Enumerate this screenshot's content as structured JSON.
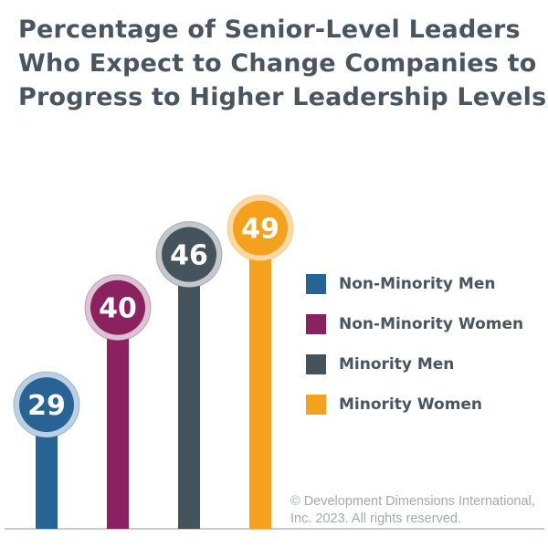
{
  "title_lines": [
    "Percentage of Senior-Level Leaders",
    "Who Expect to Change Companies to",
    "Progress to Higher Leadership Levels"
  ],
  "chart_data": {
    "type": "bar",
    "title": "Percentage of Senior-Level Leaders Who Expect to Change Companies to Progress to Higher Leadership Levels",
    "categories": [
      "Non-Minority Men",
      "Non-Minority Women",
      "Minority Men",
      "Minority Women"
    ],
    "values": [
      29,
      40,
      46,
      49
    ],
    "colors": [
      "#276394",
      "#8c2160",
      "#45535d",
      "#f4a11d"
    ],
    "ring_colors": [
      "#bcd0e4",
      "#dcc3d2",
      "#c4c8cc",
      "#fbd9a6"
    ],
    "baseline_color": "#c8ccd0",
    "grid": false,
    "legend": "right",
    "data_labels": true
  },
  "copyright_lines": [
    "© Development Dimensions International,",
    "Inc. 2023. All rights reserved."
  ]
}
